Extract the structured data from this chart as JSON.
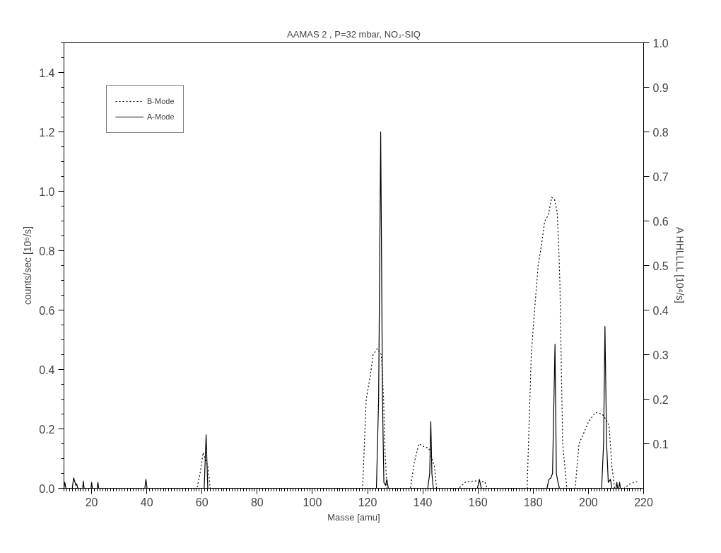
{
  "chart_data": {
    "type": "line",
    "title": "AAMAS 2 , P=32 mbar, NO₂-SIQ",
    "xlabel": "Masse [amu]",
    "ylabel": "counts/sec [10⁵/s]",
    "y2label": "A HHLLLL [10⁴/s]",
    "xlim": [
      10,
      220
    ],
    "xticks": [
      20,
      40,
      60,
      80,
      100,
      120,
      140,
      160,
      180,
      200,
      220
    ],
    "ylim": [
      0,
      1.5
    ],
    "yticks": [
      {
        "value": 0,
        "label": "0.0"
      },
      0.2,
      0.4,
      0.6,
      0.8,
      {
        "value": 1.0,
        "label": "1.0"
      },
      1.2,
      1.4
    ],
    "y2lim": [
      0,
      1.0
    ],
    "y2ticks": [
      0.1,
      0.2,
      0.3,
      0.4,
      0.5,
      0.6,
      0.7,
      0.8,
      0.9,
      {
        "value": 1.0,
        "label": "1.0"
      }
    ],
    "grid": false,
    "legend": "top left",
    "series": [
      {
        "name": "B-Mode",
        "color": "#000000",
        "line_style": "dotted",
        "x": [
          10,
          58.2,
          59.5,
          60.4,
          61.2,
          62.1,
          63,
          118.2,
          119.5,
          121,
          122,
          123.5,
          125,
          125.8,
          126.2,
          127,
          135.5,
          137,
          138.6,
          140.5,
          142.2,
          143.3,
          144.2,
          145,
          153.1,
          155.6,
          159,
          162.5,
          163.3,
          177.8,
          179.3,
          180.5,
          181.8,
          183,
          184.2,
          185.5,
          186.7,
          187.8,
          188.7,
          189.3,
          189.7,
          190.2,
          190.7,
          192.2,
          195.2,
          196.6,
          198.5,
          200.1,
          201.3,
          202.6,
          205,
          206.5,
          207.5,
          208.5,
          209.5,
          213,
          215,
          217.4,
          218
        ],
        "values": [
          0,
          0,
          0.06,
          0.12,
          0.1,
          0.075,
          0,
          0,
          0.3,
          0.38,
          0.45,
          0.47,
          0.45,
          0.3,
          0.15,
          0,
          0,
          0.09,
          0.15,
          0.14,
          0.135,
          0.1,
          0.075,
          0,
          0,
          0.022,
          0.025,
          0.022,
          0,
          0,
          0.45,
          0.6,
          0.75,
          0.82,
          0.9,
          0.92,
          0.98,
          0.97,
          0.93,
          0.8,
          0.68,
          0.4,
          0.15,
          0,
          0,
          0.15,
          0.19,
          0.225,
          0.24,
          0.255,
          0.25,
          0.23,
          0.21,
          0.075,
          0,
          0,
          0.015,
          0.022,
          0.022
        ]
      },
      {
        "name": "A-Mode",
        "color": "#000000",
        "line_style": "solid",
        "x": [
          10,
          10.3,
          10.7,
          13,
          13.5,
          14,
          14.3,
          14.6,
          15,
          16.8,
          17,
          17.3,
          19.8,
          20,
          20.3,
          22,
          22.3,
          22.6,
          30,
          39.3,
          39.7,
          40.1,
          60.8,
          61.5,
          62.1,
          123.2,
          124,
          124.75,
          125.4,
          125.9,
          126.5,
          127,
          127.5,
          141.8,
          142.5,
          142.9,
          143.3,
          143.8,
          159.8,
          160.5,
          161.2,
          185,
          185.7,
          186.4,
          187,
          187.9,
          188.4,
          189,
          189.5,
          204.8,
          205.5,
          206,
          206.6,
          207.2,
          208,
          208.5,
          210,
          210.3,
          210.6,
          211,
          211.3,
          211.6,
          220
        ],
        "values": [
          0,
          0.02,
          0,
          0,
          0.035,
          0.02,
          0.01,
          0.015,
          0,
          0,
          0.025,
          0,
          0,
          0.02,
          0,
          0,
          0.02,
          0,
          0,
          0,
          0.03,
          0,
          0,
          0.18,
          0,
          0,
          0.3,
          1.2,
          0.3,
          0.02,
          0.01,
          0.03,
          0,
          0,
          0.05,
          0.225,
          0.05,
          0,
          0,
          0.03,
          0,
          0,
          0.03,
          0.035,
          0.05,
          0.485,
          0.05,
          0.02,
          0,
          0,
          0.15,
          0.545,
          0.15,
          0.02,
          0.03,
          0,
          0,
          0.02,
          0,
          0,
          0.02,
          0,
          0
        ]
      }
    ]
  }
}
